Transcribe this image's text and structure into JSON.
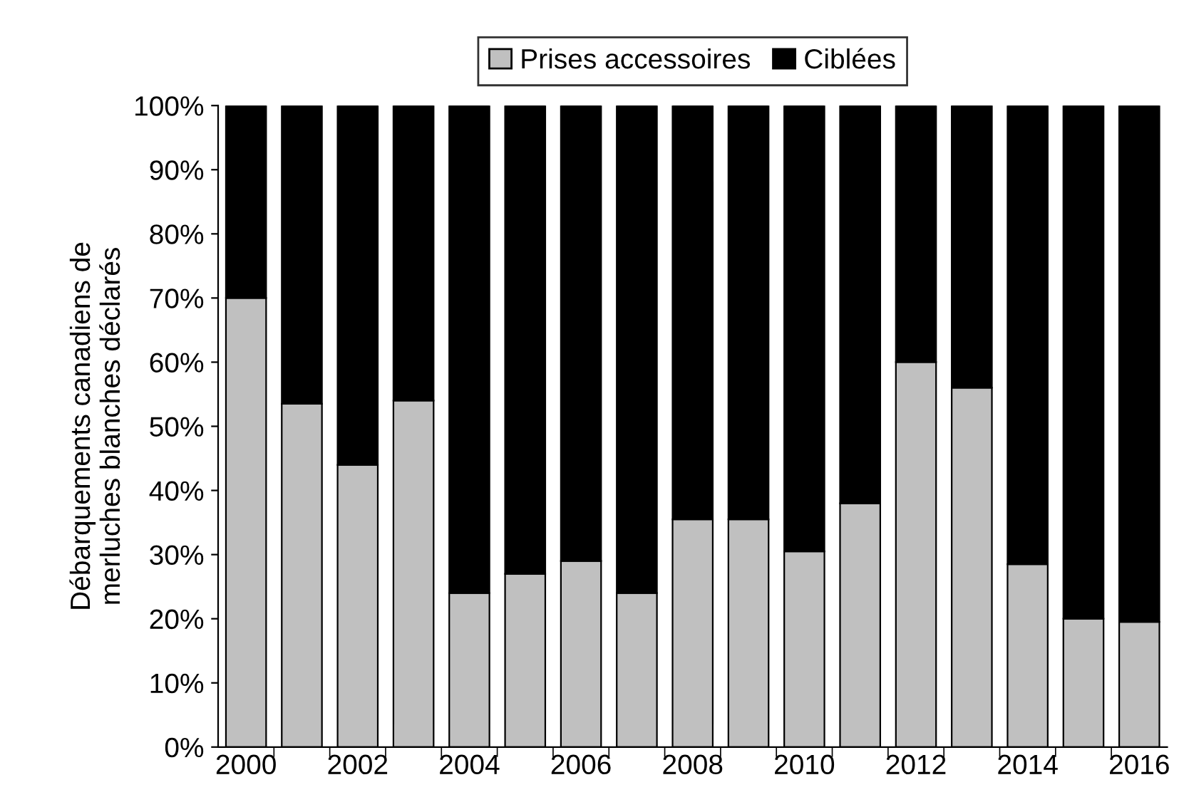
{
  "chart_data": {
    "type": "bar",
    "stacked": true,
    "ylabel": "Débarquements canadiens de\nmerluches blanches déclarés",
    "categories": [
      "2000",
      null,
      "2002",
      null,
      "2004",
      null,
      "2006",
      null,
      "2008",
      null,
      "2010",
      null,
      "2012",
      null,
      "2014",
      null,
      "2016"
    ],
    "series": [
      {
        "name": "Prises accessoires",
        "color": "#c0c0c0",
        "values": [
          70,
          53.5,
          44,
          54,
          24,
          27,
          29,
          24,
          35.5,
          35.5,
          30.5,
          38,
          60,
          56,
          28.5,
          20,
          19.5
        ]
      },
      {
        "name": "Ciblées",
        "color": "#000000",
        "values": [
          30,
          46.5,
          56,
          46,
          76,
          73,
          71,
          76,
          64.5,
          64.5,
          69.5,
          62,
          40,
          44,
          71.5,
          80,
          80.5
        ]
      }
    ],
    "ylim": [
      0,
      100
    ],
    "yticks": [
      {
        "value": 0,
        "label": "0%"
      },
      {
        "value": 10,
        "label": "10%"
      },
      {
        "value": 20,
        "label": "20%"
      },
      {
        "value": 30,
        "label": "30%"
      },
      {
        "value": 40,
        "label": "40%"
      },
      {
        "value": 50,
        "label": "50%"
      },
      {
        "value": 60,
        "label": "60%"
      },
      {
        "value": 70,
        "label": "70%"
      },
      {
        "value": 80,
        "label": "80%"
      },
      {
        "value": 90,
        "label": "90%"
      },
      {
        "value": 100,
        "label": "100%"
      }
    ],
    "legend": "top"
  }
}
